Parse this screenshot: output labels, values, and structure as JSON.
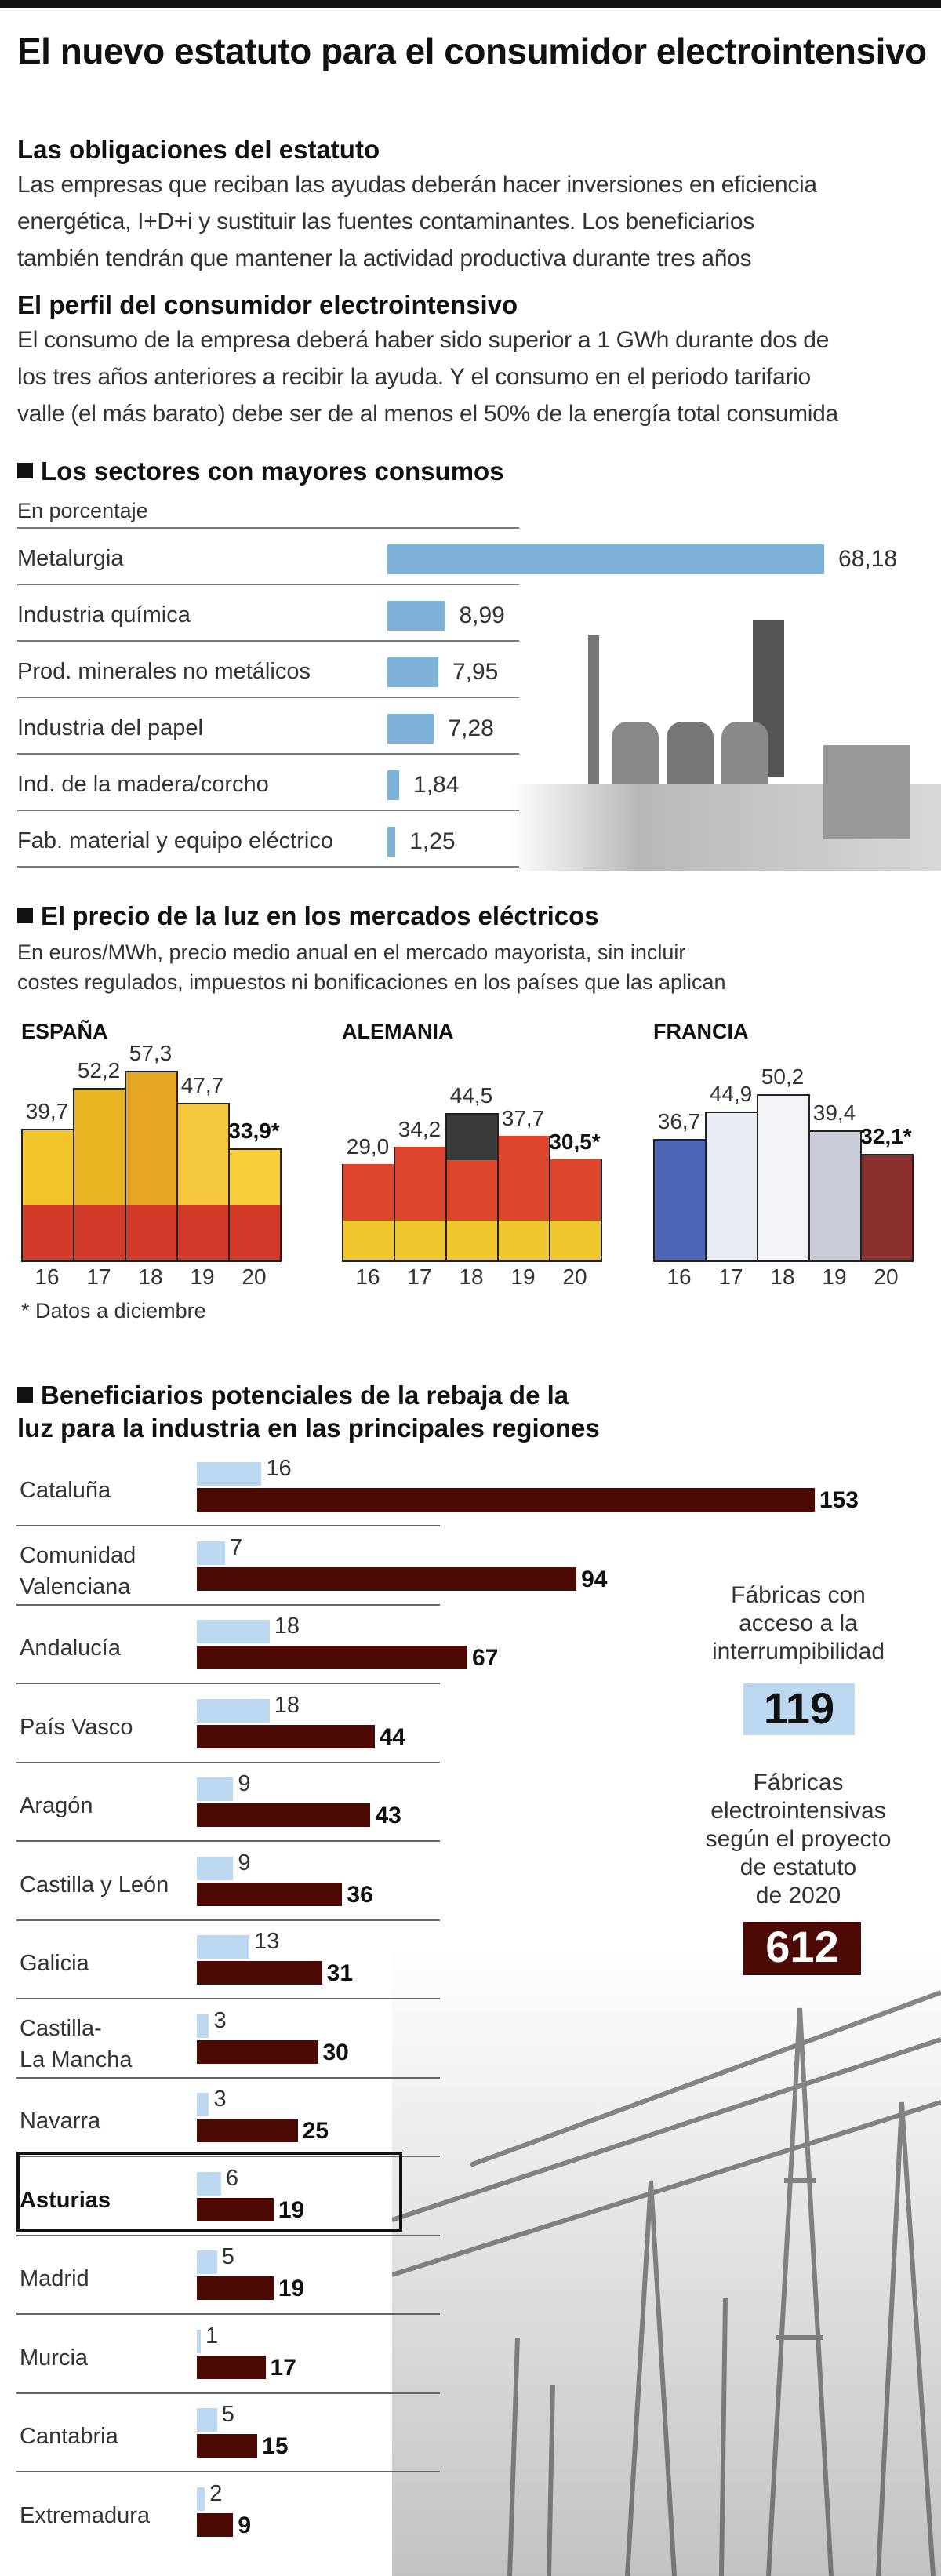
{
  "title": "El nuevo estatuto para el consumidor electrointensivo",
  "intro": [
    {
      "heading": "Las obligaciones del estatuto",
      "lines": [
        "Las empresas que reciban las ayudas deberán hacer inversiones en eficiencia",
        "energética, I+D+i y sustituir las fuentes contaminantes. Los beneficiarios",
        "también tendrán que mantener la actividad productiva durante tres años"
      ]
    },
    {
      "heading": "El perfil del consumidor electrointensivo",
      "lines": [
        "El consumo de la empresa deberá haber sido superior a 1 GWh durante dos de",
        "los tres años anteriores a recibir la ayuda. Y el consumo en el periodo tarifario",
        "valle (el más barato) debe ser de al menos el 50% de la energía total consumida"
      ]
    }
  ],
  "chart_data": [
    {
      "type": "bar",
      "orientation": "horizontal",
      "title": "Los sectores con mayores consumos",
      "subtitle": "En porcentaje",
      "categories": [
        "Metalurgia",
        "Industria química",
        "Prod. minerales no metálicos",
        "Industria del papel",
        "Ind. de la madera/corcho",
        "Fab. material y equipo eléctrico"
      ],
      "values": [
        68.18,
        8.99,
        7.95,
        7.28,
        1.84,
        1.25
      ],
      "labels": [
        "68,18",
        "8,99",
        "7,95",
        "7,28",
        "1,84",
        "1,25"
      ],
      "color": "#7fb2d8"
    },
    {
      "type": "bar",
      "title": "El precio de la luz en los mercados eléctricos",
      "subtitle_lines": [
        "En euros/MWh, precio medio anual en el mercado mayorista, sin incluir",
        "costes regulados, impuestos ni bonificaciones en los países que las aplican"
      ],
      "categories": [
        "16",
        "17",
        "18",
        "19",
        "20"
      ],
      "panels": [
        {
          "name": "ESPAÑA",
          "values": [
            39.7,
            52.2,
            57.3,
            47.7,
            33.9
          ],
          "labels": [
            "39,7",
            "52,2",
            "57,3",
            "47,7",
            "33,9*"
          ]
        },
        {
          "name": "ALEMANIA",
          "values": [
            29.0,
            34.2,
            44.5,
            37.7,
            30.5
          ],
          "labels": [
            "29,0",
            "34,2",
            "44,5",
            "37,7",
            "30,5*"
          ]
        },
        {
          "name": "FRANCIA",
          "values": [
            36.7,
            44.9,
            50.2,
            39.4,
            32.1
          ],
          "labels": [
            "36,7",
            "44,9",
            "50,2",
            "39,4",
            "32,1*"
          ]
        }
      ],
      "footnote": "* Datos a diciembre"
    },
    {
      "type": "bar",
      "orientation": "horizontal",
      "title_lines": [
        "Beneficiarios potenciales de la rebaja de la",
        "luz para la industria en las principales regiones"
      ],
      "categories": [
        [
          "Cataluña"
        ],
        [
          "Comunidad",
          "Valenciana"
        ],
        [
          "Andalucía"
        ],
        [
          "País Vasco"
        ],
        [
          "Aragón"
        ],
        [
          "Castilla y León"
        ],
        [
          "Galicia"
        ],
        [
          "Castilla-",
          "La Mancha"
        ],
        [
          "Navarra"
        ],
        [
          "Asturias"
        ],
        [
          "Madrid"
        ],
        [
          "Murcia"
        ],
        [
          "Cantabria"
        ],
        [
          "Extremadura"
        ]
      ],
      "highlight": "Asturias",
      "series": [
        {
          "name": "Fábricas con acceso a la interrumpibilidad",
          "values": [
            16,
            7,
            18,
            18,
            9,
            9,
            13,
            3,
            3,
            6,
            5,
            1,
            5,
            2
          ],
          "color": "#bcd7f0"
        },
        {
          "name": "Fábricas electrointensivas según el proyecto de estatuto de 2020",
          "values": [
            153,
            94,
            67,
            44,
            43,
            36,
            31,
            30,
            25,
            19,
            19,
            17,
            15,
            9
          ],
          "color": "#4d0a04"
        }
      ],
      "legend": [
        {
          "lines": [
            "Fábricas con",
            "acceso a la",
            "interrumpibilidad"
          ],
          "total": "119"
        },
        {
          "lines": [
            "Fábricas",
            "electrointensivas",
            "según el proyecto",
            "de estatuto",
            "de 2020"
          ],
          "total": "612"
        }
      ]
    }
  ]
}
